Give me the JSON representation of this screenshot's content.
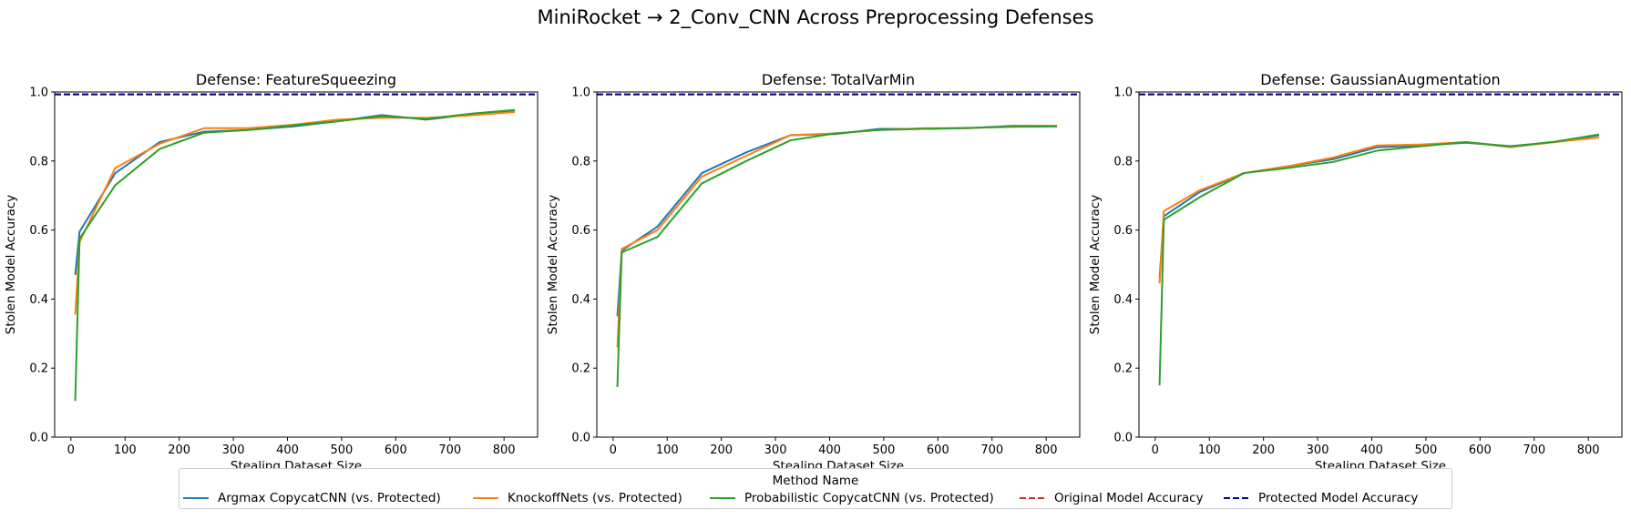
{
  "figure": {
    "suptitle": "MiniRocket → 2_Conv_CNN Across Preprocessing Defenses"
  },
  "colors": {
    "argmax": "#1f77b4",
    "knockoff": "#ff7f0e",
    "prob": "#2ca02c",
    "original": "#d62728",
    "protected": "#00008b"
  },
  "legend": {
    "title": "Method Name",
    "items": [
      {
        "label": "Argmax CopycatCNN (vs. Protected)",
        "key": "argmax",
        "style": "solid"
      },
      {
        "label": "KnockoffNets (vs. Protected)",
        "key": "knockoff",
        "style": "solid"
      },
      {
        "label": "Probabilistic CopycatCNN (vs. Protected)",
        "key": "prob",
        "style": "solid"
      },
      {
        "label": "Original Model Accuracy",
        "key": "original",
        "style": "dashed"
      },
      {
        "label": "Protected Model Accuracy",
        "key": "protected",
        "style": "dashed"
      }
    ]
  },
  "chart_data": [
    {
      "type": "line",
      "title": "Defense: FeatureSqueezing",
      "xlabel": "Stealing Dataset Size",
      "ylabel": "Stolen Model Accuracy",
      "xlim": [
        -30,
        862
      ],
      "ylim": [
        0,
        1.0
      ],
      "xticks": [
        0,
        100,
        200,
        300,
        400,
        500,
        600,
        700,
        800
      ],
      "yticks": [
        0.0,
        0.2,
        0.4,
        0.6,
        0.8,
        1.0
      ],
      "x": [
        8,
        16,
        82,
        164,
        246,
        328,
        410,
        492,
        574,
        656,
        738,
        820
      ],
      "series": [
        {
          "name": "Argmax CopycatCNN (vs. Protected)",
          "key": "argmax",
          "values": [
            0.47,
            0.595,
            0.765,
            0.855,
            0.885,
            0.89,
            0.9,
            0.915,
            0.933,
            0.92,
            0.935,
            0.945
          ]
        },
        {
          "name": "KnockoffNets (vs. Protected)",
          "key": "knockoff",
          "values": [
            0.355,
            0.565,
            0.78,
            0.85,
            0.895,
            0.895,
            0.905,
            0.92,
            0.925,
            0.925,
            0.932,
            0.942
          ]
        },
        {
          "name": "Probabilistic CopycatCNN (vs. Protected)",
          "key": "prob",
          "values": [
            0.105,
            0.575,
            0.73,
            0.835,
            0.882,
            0.89,
            0.903,
            0.915,
            0.93,
            0.922,
            0.937,
            0.948
          ]
        }
      ],
      "hlines": [
        {
          "name": "Original Model Accuracy",
          "key": "original",
          "value": 0.993
        },
        {
          "name": "Protected Model Accuracy",
          "key": "protected",
          "value": 0.993
        }
      ]
    },
    {
      "type": "line",
      "title": "Defense: TotalVarMin",
      "xlabel": "Stealing Dataset Size",
      "ylabel": "Stolen Model Accuracy",
      "xlim": [
        -30,
        862
      ],
      "ylim": [
        0,
        1.0
      ],
      "xticks": [
        0,
        100,
        200,
        300,
        400,
        500,
        600,
        700,
        800
      ],
      "yticks": [
        0.0,
        0.2,
        0.4,
        0.6,
        0.8,
        1.0
      ],
      "x": [
        8,
        16,
        82,
        164,
        246,
        328,
        410,
        492,
        574,
        656,
        738,
        820
      ],
      "series": [
        {
          "name": "Argmax CopycatCNN (vs. Protected)",
          "key": "argmax",
          "values": [
            0.35,
            0.54,
            0.61,
            0.765,
            0.825,
            0.875,
            0.878,
            0.893,
            0.893,
            0.895,
            0.902,
            0.902
          ]
        },
        {
          "name": "KnockoffNets (vs. Protected)",
          "key": "knockoff",
          "values": [
            0.26,
            0.545,
            0.6,
            0.755,
            0.815,
            0.875,
            0.88,
            0.89,
            0.895,
            0.895,
            0.9,
            0.902
          ]
        },
        {
          "name": "Probabilistic CopycatCNN (vs. Protected)",
          "key": "prob",
          "values": [
            0.145,
            0.535,
            0.58,
            0.735,
            0.8,
            0.86,
            0.88,
            0.89,
            0.893,
            0.896,
            0.899,
            0.9
          ]
        }
      ],
      "hlines": [
        {
          "name": "Original Model Accuracy",
          "key": "original",
          "value": 0.993
        },
        {
          "name": "Protected Model Accuracy",
          "key": "protected",
          "value": 0.993
        }
      ]
    },
    {
      "type": "line",
      "title": "Defense: GaussianAugmentation",
      "xlabel": "Stealing Dataset Size",
      "ylabel": "Stolen Model Accuracy",
      "xlim": [
        -30,
        862
      ],
      "ylim": [
        0,
        1.0
      ],
      "xticks": [
        0,
        100,
        200,
        300,
        400,
        500,
        600,
        700,
        800
      ],
      "yticks": [
        0.0,
        0.2,
        0.4,
        0.6,
        0.8,
        1.0
      ],
      "x": [
        8,
        16,
        82,
        164,
        246,
        328,
        410,
        492,
        574,
        656,
        738,
        820
      ],
      "series": [
        {
          "name": "Argmax CopycatCNN (vs. Protected)",
          "key": "argmax",
          "values": [
            0.46,
            0.64,
            0.71,
            0.765,
            0.785,
            0.805,
            0.84,
            0.845,
            0.853,
            0.843,
            0.855,
            0.875
          ]
        },
        {
          "name": "KnockoffNets (vs. Protected)",
          "key": "knockoff",
          "values": [
            0.445,
            0.655,
            0.715,
            0.765,
            0.785,
            0.81,
            0.845,
            0.848,
            0.855,
            0.84,
            0.855,
            0.868
          ]
        },
        {
          "name": "Probabilistic CopycatCNN (vs. Protected)",
          "key": "prob",
          "values": [
            0.15,
            0.63,
            0.695,
            0.765,
            0.78,
            0.797,
            0.83,
            0.843,
            0.855,
            0.842,
            0.856,
            0.877
          ]
        }
      ],
      "hlines": [
        {
          "name": "Original Model Accuracy",
          "key": "original",
          "value": 0.993
        },
        {
          "name": "Protected Model Accuracy",
          "key": "protected",
          "value": 0.993
        }
      ]
    }
  ]
}
